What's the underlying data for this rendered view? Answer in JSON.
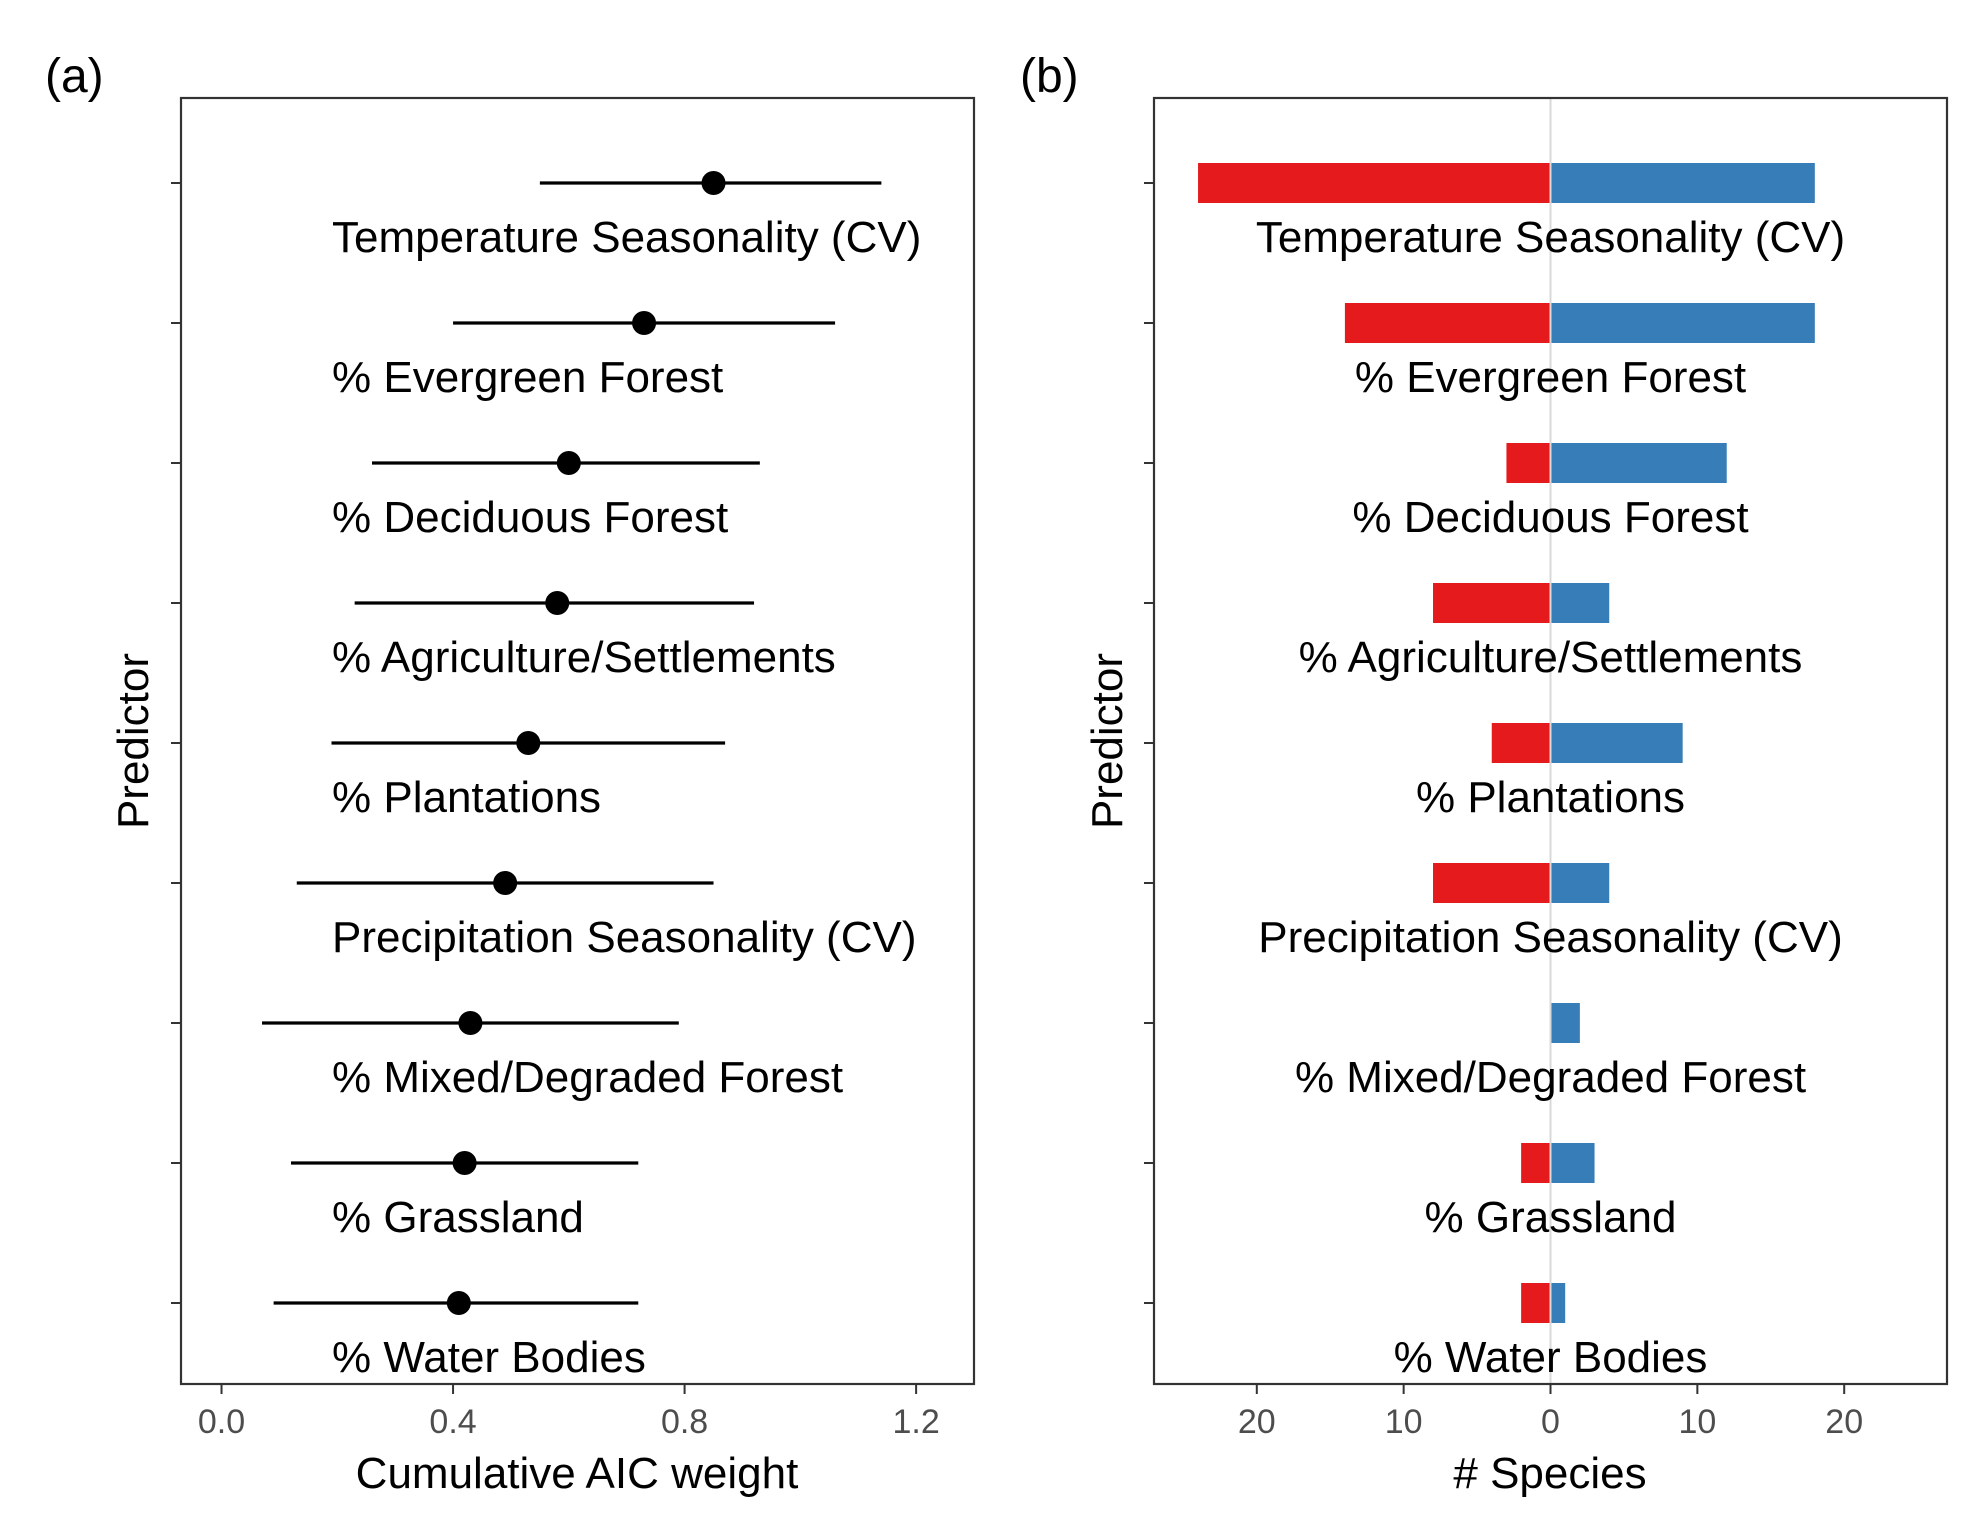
{
  "chart_data": [
    {
      "panel_label": "(a)",
      "type": "scatter",
      "xlabel": "Cumulative AIC weight",
      "ylabel": "Predictor",
      "xlim": [
        -0.07,
        1.3
      ],
      "xticks": [
        "0.0",
        "0.4",
        "0.8",
        "1.2"
      ],
      "xtick_values": [
        0,
        0.4,
        0.8,
        1.2
      ],
      "categories": [
        "Temperature Seasonality (CV)",
        "% Evergreen Forest",
        "% Deciduous Forest",
        "% Agriculture/Settlements",
        "% Plantations",
        "Precipitation Seasonality (CV)",
        "% Mixed/Degraded Forest",
        "% Grassland",
        "% Water Bodies"
      ],
      "values": [
        0.85,
        0.73,
        0.6,
        0.58,
        0.53,
        0.49,
        0.43,
        0.42,
        0.41
      ],
      "lower": [
        0.55,
        0.4,
        0.26,
        0.23,
        0.19,
        0.13,
        0.07,
        0.12,
        0.09
      ],
      "upper": [
        1.14,
        1.06,
        0.93,
        0.92,
        0.87,
        0.85,
        0.79,
        0.72,
        0.72
      ],
      "grid": false,
      "point_color": "#000000"
    },
    {
      "panel_label": "(b)",
      "type": "bar",
      "orientation": "horizontal diverging",
      "xlabel": "# Species",
      "ylabel": "Predictor",
      "xlim": [
        -27,
        27
      ],
      "xticks": [
        "20",
        "10",
        "0",
        "10",
        "20"
      ],
      "xtick_values": [
        -20,
        -10,
        0,
        10,
        20
      ],
      "categories": [
        "Temperature Seasonality (CV)",
        "% Evergreen Forest",
        "% Deciduous Forest",
        "% Agriculture/Settlements",
        "% Plantations",
        "Precipitation Seasonality (CV)",
        "% Mixed/Degraded Forest",
        "% Grassland",
        "% Water Bodies"
      ],
      "series": [
        {
          "values": [
            24,
            14,
            3,
            8,
            4,
            8,
            0,
            2,
            2
          ],
          "color": "#e41a1c",
          "direction": "left"
        },
        {
          "values": [
            18,
            18,
            12,
            4,
            9,
            4,
            2,
            3,
            1
          ],
          "color": "#377eb8",
          "direction": "right"
        }
      ],
      "grid": false,
      "zero_line": true
    }
  ]
}
